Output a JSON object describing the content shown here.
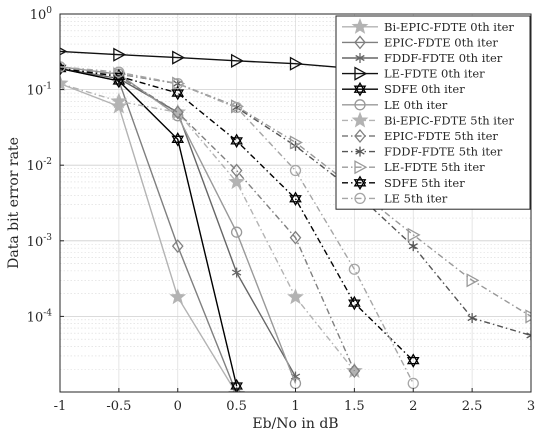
{
  "chart_data": {
    "type": "line",
    "title": "",
    "xlabel": "Eb/No in dB",
    "ylabel": "Data bit error rate",
    "xlim": [
      -1,
      3
    ],
    "ylim": [
      1e-05,
      1
    ],
    "yscale": "log",
    "grid": true,
    "legend_position": "top-right",
    "x_ticks": [
      -1,
      -0.5,
      0,
      0.5,
      1,
      1.5,
      2,
      2.5,
      3
    ],
    "x_tick_labels": [
      "-1",
      "-0.5",
      "0",
      "0.5",
      "1",
      "1.5",
      "2",
      "2.5",
      "3"
    ],
    "y_ticks": [
      0.0001,
      0.001,
      0.01,
      0.1,
      1
    ],
    "y_tick_base": "10",
    "y_tick_exponents": [
      "-4",
      "-3",
      "-2",
      "-1",
      "0"
    ],
    "series": [
      {
        "name": "Bi-EPIC-FDTE 0th iter",
        "color": "#b3b3b3",
        "dash": "solid",
        "marker": "star",
        "x": [
          -1,
          -0.5,
          0,
          0.5
        ],
        "y": [
          0.12,
          0.06,
          0.00018,
          9.5e-06
        ]
      },
      {
        "name": "EPIC-FDTE 0th iter",
        "color": "#7f7f7f",
        "dash": "solid",
        "marker": "diamond",
        "x": [
          -1,
          -0.5,
          0,
          0.5
        ],
        "y": [
          0.19,
          0.13,
          0.00085,
          9.5e-06
        ]
      },
      {
        "name": "FDDF-FDTE 0th iter",
        "color": "#666666",
        "dash": "solid",
        "marker": "asterisk",
        "x": [
          -1,
          -0.5,
          0,
          0.5,
          1
        ],
        "y": [
          0.19,
          0.14,
          0.05,
          0.00038,
          1.6e-05
        ]
      },
      {
        "name": "LE-FDTE 0th iter",
        "color": "#111111",
        "dash": "solid",
        "marker": "triangle-right",
        "x": [
          -1,
          -0.5,
          0,
          0.5,
          1,
          1.5,
          2,
          2.5,
          3
        ],
        "y": [
          0.32,
          0.29,
          0.265,
          0.24,
          0.22,
          0.19,
          0.17,
          0.15,
          0.125
        ]
      },
      {
        "name": "SDFE 0th iter",
        "color": "#000000",
        "dash": "solid",
        "marker": "hexagram",
        "x": [
          -1,
          -0.5,
          0,
          0.5
        ],
        "y": [
          0.19,
          0.13,
          0.022,
          1.2e-05
        ]
      },
      {
        "name": "LE 0th iter",
        "color": "#999999",
        "dash": "solid",
        "marker": "circle",
        "x": [
          -1,
          -0.5,
          0,
          0.5,
          1
        ],
        "y": [
          0.2,
          0.16,
          0.045,
          0.0013,
          1.3e-05
        ]
      },
      {
        "name": "Bi-EPIC-FDTE 5th iter",
        "color": "#b3b3b3",
        "dash": "dashdot",
        "marker": "star",
        "x": [
          -1,
          -0.5,
          0,
          0.5,
          1,
          1.5
        ],
        "y": [
          0.12,
          0.07,
          0.05,
          0.006,
          0.00018,
          1.9e-05
        ]
      },
      {
        "name": "EPIC-FDTE 5th iter",
        "color": "#7f7f7f",
        "dash": "dashdot",
        "marker": "diamond",
        "x": [
          -1,
          -0.5,
          0,
          0.5,
          1,
          1.5
        ],
        "y": [
          0.19,
          0.15,
          0.05,
          0.0085,
          0.0011,
          1.9e-05
        ]
      },
      {
        "name": "FDDF-FDTE 5th iter",
        "color": "#555555",
        "dash": "dashdot",
        "marker": "asterisk",
        "x": [
          -1,
          -0.5,
          0,
          0.5,
          1,
          1.5,
          2,
          2.5,
          3
        ],
        "y": [
          0.19,
          0.16,
          0.12,
          0.058,
          0.018,
          0.0045,
          0.00085,
          9.5e-05,
          5.6e-05
        ]
      },
      {
        "name": "LE-FDTE 5th iter",
        "color": "#999999",
        "dash": "dashdot",
        "marker": "triangle-right",
        "x": [
          -1,
          -0.5,
          0,
          0.5,
          1,
          1.5,
          2,
          2.5,
          3
        ],
        "y": [
          0.19,
          0.16,
          0.12,
          0.06,
          0.02,
          0.005,
          0.0012,
          0.0003,
          0.0001
        ]
      },
      {
        "name": "SDFE 5th iter",
        "color": "#000000",
        "dash": "dashdot",
        "marker": "hexagram",
        "x": [
          -1,
          -0.5,
          0,
          0.5,
          1,
          1.5,
          2
        ],
        "y": [
          0.19,
          0.15,
          0.09,
          0.021,
          0.0036,
          0.00015,
          2.6e-05
        ]
      },
      {
        "name": "LE 5th iter",
        "color": "#a6a6a6",
        "dash": "dashdot",
        "marker": "circle",
        "x": [
          -1,
          -0.5,
          0,
          0.5,
          1,
          1.5,
          2
        ],
        "y": [
          0.2,
          0.17,
          0.12,
          0.058,
          0.0085,
          0.00042,
          1.3e-05
        ]
      }
    ]
  }
}
